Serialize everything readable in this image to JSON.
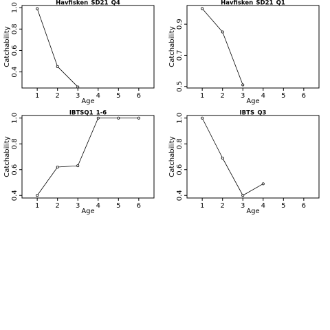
{
  "chart_data": [
    {
      "type": "line",
      "title": "Havfisken_SD21_Q4",
      "xlabel": "Age",
      "ylabel": "Catchability",
      "xlim": [
        0.25,
        6.75
      ],
      "ylim": [
        0.25,
        1.02
      ],
      "xticks": [
        "1",
        "2",
        "3",
        "4",
        "5",
        "6"
      ],
      "yticks": [
        "0.4",
        "0.6",
        "0.8",
        "1.0"
      ],
      "y_tick_values": [
        0.4,
        0.6,
        0.8,
        1.0
      ],
      "x": [
        1,
        2,
        3
      ],
      "y": [
        0.99,
        0.45,
        0.26
      ]
    },
    {
      "type": "line",
      "title": "Havfisken_SD21_Q1",
      "xlabel": "Age",
      "ylabel": "Catchability",
      "xlim": [
        0.25,
        6.75
      ],
      "ylim": [
        0.49,
        1.02
      ],
      "xticks": [
        "1",
        "2",
        "3",
        "4",
        "5",
        "6"
      ],
      "yticks": [
        "0.5",
        "0.7",
        "0.9"
      ],
      "y_tick_values": [
        0.5,
        0.7,
        0.9
      ],
      "x": [
        1,
        2,
        3
      ],
      "y": [
        1.0,
        0.85,
        0.51
      ]
    },
    {
      "type": "line",
      "title": "IBTSQ1_1-6",
      "xlabel": "Age",
      "ylabel": "Catchability",
      "xlim": [
        0.25,
        6.75
      ],
      "ylim": [
        0.38,
        1.02
      ],
      "xticks": [
        "1",
        "2",
        "3",
        "4",
        "5",
        "6"
      ],
      "yticks": [
        "0.4",
        "0.6",
        "0.8",
        "1.0"
      ],
      "y_tick_values": [
        0.4,
        0.6,
        0.8,
        1.0
      ],
      "x": [
        1,
        2,
        3,
        4,
        5,
        6
      ],
      "y": [
        0.4,
        0.62,
        0.63,
        1.0,
        1.0,
        1.0
      ]
    },
    {
      "type": "line",
      "title": "IBTS_Q3",
      "xlabel": "Age",
      "ylabel": "Catchability",
      "xlim": [
        0.25,
        6.75
      ],
      "ylim": [
        0.38,
        1.02
      ],
      "xticks": [
        "1",
        "2",
        "3",
        "4",
        "5",
        "6"
      ],
      "yticks": [
        "0.4",
        "0.6",
        "0.8",
        "1.0"
      ],
      "y_tick_values": [
        0.4,
        0.6,
        0.8,
        1.0
      ],
      "x": [
        1,
        2,
        3,
        4
      ],
      "y": [
        1.0,
        0.69,
        0.4,
        0.49
      ]
    }
  ],
  "style": {
    "line_color": "#000000",
    "marker_fill": "#ffffff",
    "axis_color": "#000000",
    "background": "#ffffff"
  }
}
